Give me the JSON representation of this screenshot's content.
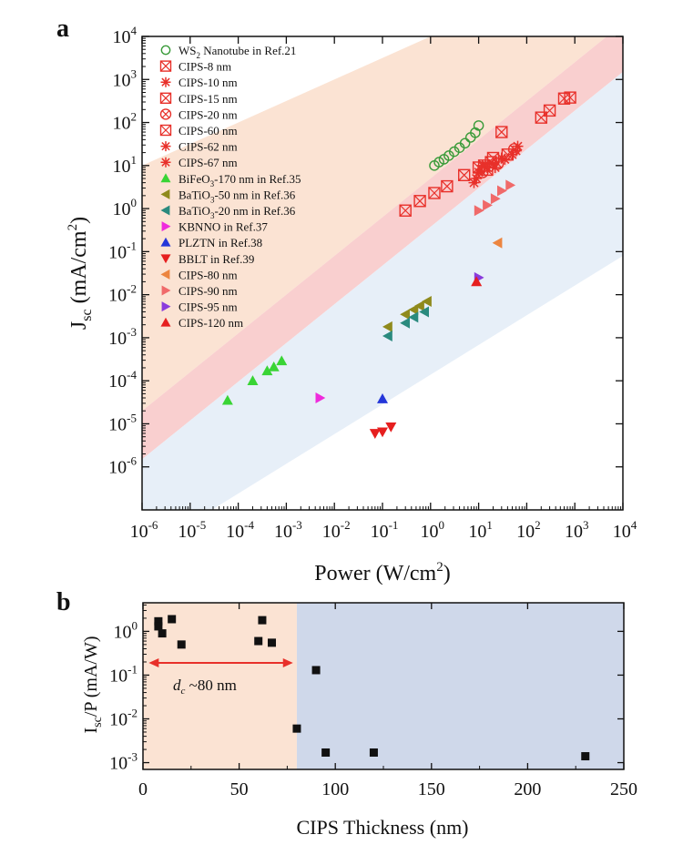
{
  "colors": {
    "band_orange": "#fbe3d3",
    "band_pink": "#f9cfcf",
    "band_blue": "#e7eff8",
    "region_low": "#fbe3d3",
    "region_high": "#cfd8ea",
    "arrow": "#e8302a"
  },
  "chart_data": [
    {
      "panel": "a",
      "type": "scatter",
      "xscale": "log",
      "yscale": "log",
      "xlabel": "Power (W/cm²)",
      "ylabel": "Jsc (mA/cm²)",
      "xlim": [
        1e-06,
        10000.0
      ],
      "ylim": [
        1e-07,
        10000.0
      ],
      "x_ticks": [
        -6,
        -5,
        -4,
        -3,
        -2,
        -1,
        0,
        1,
        2,
        3,
        4
      ],
      "y_ticks": [
        -6,
        -5,
        -4,
        -3,
        -2,
        -1,
        0,
        1,
        2,
        3,
        4
      ],
      "bands": [
        {
          "color": "#fbe3d3",
          "upper": [
            [
              0.0002,
              10000
            ],
            [
              1e-06,
              10000
            ],
            [
              1e-06,
              0.1
            ]
          ],
          "lower": [
            [
              1e-06,
              0.0001
            ],
            [
              10000,
              100000
            ]
          ]
        },
        {
          "color": "#f9cfcf",
          "line_hi": {
            "x0": 1e-06,
            "y0": 2e-05,
            "x1": 10000,
            "y1": 20000
          },
          "line_lo": {
            "x0": 1e-06,
            "y0": 1.5e-06,
            "x1": 10000,
            "y1": 1500
          }
        },
        {
          "color": "#e7eff8",
          "line_hi": {
            "x0": 1e-06,
            "y0": 1.5e-06,
            "x1": 10000,
            "y1": 1500
          },
          "line_lo": {
            "x0": 1e-06,
            "y0": 1e-08,
            "x1": 10000,
            "y1": 0.08
          }
        }
      ],
      "series": [
        {
          "name": "WS Nanotube in Ref.21",
          "sub": "2",
          "marker": "circle-open",
          "color": "#3a9b3a",
          "points": [
            [
              1.2,
              10
            ],
            [
              1.5,
              12
            ],
            [
              1.9,
              14
            ],
            [
              2.4,
              17
            ],
            [
              3.1,
              21
            ],
            [
              4,
              26
            ],
            [
              5.2,
              33
            ],
            [
              6.8,
              45
            ],
            [
              8.5,
              58
            ],
            [
              10,
              85
            ]
          ]
        },
        {
          "name": "CIPS-8 nm",
          "marker": "sq-x",
          "color": "#e8302a",
          "points": [
            [
              0.3,
              0.9
            ],
            [
              0.6,
              1.5
            ],
            [
              1.2,
              2.3
            ],
            [
              2.2,
              3.3
            ],
            [
              5,
              6
            ],
            [
              20,
              15
            ],
            [
              30,
              60
            ],
            [
              200,
              130
            ],
            [
              300,
              190
            ],
            [
              600,
              360
            ],
            [
              800,
              380
            ]
          ]
        },
        {
          "name": "CIPS-10 nm",
          "marker": "star",
          "color": "#e8302a",
          "points": [
            [
              8,
              4
            ],
            [
              10,
              7
            ],
            [
              15,
              9
            ],
            [
              20,
              11
            ],
            [
              35,
              14
            ],
            [
              50,
              18
            ]
          ]
        },
        {
          "name": "CIPS-15 nm",
          "marker": "sq-x",
          "color": "#e8302a",
          "points": [
            [
              10,
              9
            ],
            [
              13,
              10
            ],
            [
              18,
              12
            ]
          ]
        },
        {
          "name": "CIPS-20 nm",
          "marker": "circle-x",
          "color": "#e8302a",
          "points": [
            [
              12,
              7
            ],
            [
              25,
              11
            ],
            [
              55,
              24
            ]
          ]
        },
        {
          "name": "CIPS-60 nm",
          "marker": "sq-x",
          "color": "#e8302a",
          "points": [
            [
              15,
              8
            ],
            [
              40,
              18
            ]
          ]
        },
        {
          "name": "CIPS-62 nm",
          "marker": "star",
          "color": "#e8302a",
          "points": [
            [
              9,
              5
            ],
            [
              22,
              9
            ],
            [
              60,
              22
            ]
          ]
        },
        {
          "name": "CIPS-67 nm",
          "marker": "star",
          "color": "#e8302a",
          "points": [
            [
              12,
              10
            ],
            [
              30,
              15
            ],
            [
              65,
              28
            ]
          ]
        },
        {
          "name": "BiFeO-170 nm in Ref.35",
          "sub": "3",
          "marker": "tri-up",
          "color": "#39d435",
          "points": [
            [
              6e-05,
              3.5e-05
            ],
            [
              0.0002,
              0.0001
            ],
            [
              0.0004,
              0.00017
            ],
            [
              0.00055,
              0.00021
            ],
            [
              0.0008,
              0.00029
            ]
          ]
        },
        {
          "name": "BaTiO-50 nm in Ref.36",
          "sub": "3",
          "marker": "tri-left",
          "color": "#8f8a1c",
          "points": [
            [
              0.13,
              0.0018
            ],
            [
              0.3,
              0.0035
            ],
            [
              0.45,
              0.0045
            ],
            [
              0.6,
              0.0055
            ],
            [
              0.85,
              0.007
            ]
          ]
        },
        {
          "name": "BaTiO-20 nm in Ref.36",
          "sub": "3",
          "marker": "tri-left",
          "color": "#2a8a7e",
          "points": [
            [
              0.13,
              0.0011
            ],
            [
              0.3,
              0.0022
            ],
            [
              0.45,
              0.003
            ],
            [
              0.75,
              0.004
            ]
          ]
        },
        {
          "name": "KBNNO in Ref.37",
          "marker": "tri-right",
          "color": "#ef2bdc",
          "points": [
            [
              0.005,
              4e-05
            ]
          ]
        },
        {
          "name": "PLZTN in Ref.38",
          "marker": "tri-up",
          "color": "#2436d9",
          "points": [
            [
              0.1,
              3.8e-05
            ]
          ]
        },
        {
          "name": "BBLT in Ref.39",
          "marker": "tri-down",
          "color": "#e61f1f",
          "points": [
            [
              0.07,
              6e-06
            ],
            [
              0.1,
              6.5e-06
            ],
            [
              0.15,
              8.5e-06
            ]
          ]
        },
        {
          "name": "CIPS-80 nm",
          "marker": "tri-left",
          "color": "#ec8540",
          "points": [
            [
              25,
              0.16
            ]
          ]
        },
        {
          "name": "CIPS-90 nm",
          "marker": "tri-right",
          "color": "#f06a6a",
          "points": [
            [
              10,
              0.9
            ],
            [
              15,
              1.2
            ],
            [
              22,
              1.7
            ],
            [
              30,
              2.6
            ],
            [
              45,
              3.5
            ]
          ]
        },
        {
          "name": "CIPS-95 nm",
          "marker": "tri-right",
          "color": "#8a3bdc",
          "points": [
            [
              10,
              0.025
            ]
          ]
        },
        {
          "name": "CIPS-120 nm",
          "marker": "tri-up",
          "color": "#e61f1f",
          "points": [
            [
              9,
              0.02
            ]
          ]
        }
      ]
    },
    {
      "panel": "b",
      "type": "scatter",
      "xscale": "linear",
      "yscale": "log",
      "xlabel": "CIPS Thickness (nm)",
      "ylabel": "Isc/P (mA/W)",
      "xlim": [
        0,
        250
      ],
      "ylim": [
        0.0007,
        4.5
      ],
      "x_ticks": [
        0,
        50,
        100,
        150,
        200,
        250
      ],
      "y_ticks": [
        -3,
        -2,
        -1,
        0
      ],
      "annotation": "~80 nm",
      "annotation_symbol": "d",
      "annotation_sub": "c",
      "regions": [
        {
          "from": 0,
          "to": 80,
          "color": "#fbe3d3"
        },
        {
          "from": 80,
          "to": 250,
          "color": "#cfd8ea"
        }
      ],
      "points": [
        [
          8,
          1.7
        ],
        [
          8,
          1.3
        ],
        [
          10,
          0.9
        ],
        [
          15,
          1.9
        ],
        [
          20,
          0.5
        ],
        [
          60,
          0.6
        ],
        [
          62,
          1.8
        ],
        [
          67,
          0.55
        ],
        [
          90,
          0.13
        ],
        [
          80,
          0.006
        ],
        [
          95,
          0.0017
        ],
        [
          120,
          0.0017
        ],
        [
          230,
          0.0014
        ]
      ]
    }
  ]
}
